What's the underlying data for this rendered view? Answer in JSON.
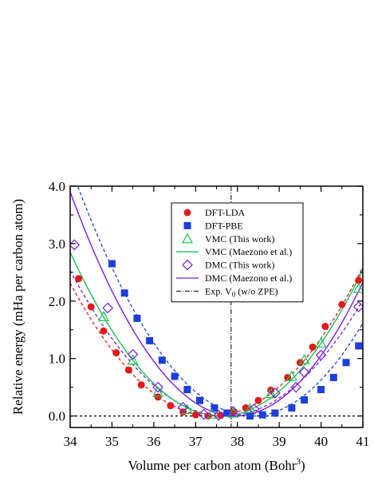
{
  "chart_data": {
    "type": "scatter",
    "title": "",
    "xlabel": "Volume per carbon atom (Bohr",
    "xlabel_superscript": "3",
    "xlabel_suffix": ")",
    "ylabel": "Relative energy (mHa per carbon atom)",
    "xlim": [
      34,
      41
    ],
    "ylim": [
      -0.2,
      4.0
    ],
    "xticks": [
      "34",
      "35",
      "36",
      "37",
      "38",
      "39",
      "40",
      "41"
    ],
    "yticks": [
      "0.0",
      "1.0",
      "2.0",
      "3.0",
      "4.0"
    ],
    "grid": false,
    "legend_position": "top-center",
    "zero_line": 0.0,
    "exp_v0": 37.85,
    "series": [
      {
        "name": "DFT-LDA",
        "kind": "points",
        "marker": "circle",
        "color": "#e3191c",
        "x": [
          34.2,
          34.5,
          34.8,
          35.1,
          35.4,
          35.7,
          36.1,
          36.4,
          36.7,
          37.0,
          37.3,
          37.6,
          37.9,
          38.2,
          38.5,
          38.8,
          39.2,
          39.5,
          39.8,
          40.1,
          40.5,
          40.9
        ],
        "y": [
          2.39,
          1.9,
          1.48,
          1.1,
          0.8,
          0.54,
          0.33,
          0.18,
          0.07,
          0.02,
          0.0,
          0.01,
          0.07,
          0.14,
          0.27,
          0.45,
          0.67,
          0.93,
          1.2,
          1.56,
          1.94,
          2.36
        ]
      },
      {
        "name": "DFT-PBE",
        "kind": "points",
        "marker": "square",
        "color": "#1c3fd9",
        "x": [
          35.0,
          35.3,
          35.6,
          35.9,
          36.2,
          36.5,
          36.8,
          37.1,
          37.45,
          37.75,
          38.3,
          38.6,
          38.9,
          39.3,
          39.6,
          40.0,
          40.3,
          40.6,
          40.9
        ],
        "y": [
          2.65,
          2.14,
          1.7,
          1.31,
          0.97,
          0.69,
          0.46,
          0.27,
          0.14,
          0.05,
          0.0,
          0.02,
          0.05,
          0.14,
          0.28,
          0.46,
          0.67,
          0.93,
          1.22
        ]
      },
      {
        "name": "VMC (This work)",
        "kind": "points",
        "marker": "triangle",
        "color": "#19c25a",
        "x": [
          34.8,
          35.5,
          36.1,
          36.8,
          37.4,
          37.9,
          38.3,
          38.8,
          39.3,
          39.6,
          40.0,
          40.9
        ],
        "y": [
          1.73,
          0.97,
          0.41,
          0.11,
          0.03,
          0.05,
          0.13,
          0.39,
          0.69,
          0.98,
          1.27,
          2.22
        ]
      },
      {
        "name": "VMC (Maezono et al.)",
        "kind": "fit",
        "style": "solid",
        "color": "#19c25a",
        "v0": 37.6,
        "k": 0.22,
        "e0": 0.0
      },
      {
        "name": "DMC (This work)",
        "kind": "points",
        "marker": "diamond",
        "color": "#7a1fd6",
        "x": [
          34.1,
          34.9,
          35.5,
          36.1,
          36.7,
          37.2,
          37.55,
          37.9,
          38.4,
          38.9,
          39.4,
          39.6,
          40.0,
          40.9
        ],
        "y": [
          2.98,
          1.88,
          1.07,
          0.5,
          0.15,
          0.03,
          0.01,
          0.08,
          0.12,
          0.4,
          0.5,
          0.76,
          1.06,
          1.9
        ]
      },
      {
        "name": "DMC (Maezono et al.)",
        "kind": "fit",
        "style": "solid",
        "color": "#7a1fd6",
        "v0": 37.95,
        "k": 0.25,
        "e0": 0.0
      },
      {
        "name": "Exp. V",
        "name_subscript": "0",
        "name_suffix": " (w/o ZPE)",
        "kind": "vline",
        "style": "dashdot",
        "color": "#000000"
      }
    ],
    "dashed_fits": [
      {
        "of": "DFT-LDA",
        "color": "#e3191c",
        "v0": 37.4,
        "k": 0.2,
        "e0": 0.0
      },
      {
        "of": "DFT-PBE",
        "color": "#1c3fd9",
        "v0": 38.35,
        "k": 0.23,
        "e0": 0.0
      },
      {
        "of": "DMC (This work)",
        "color": "#7a1fd6",
        "v0": 37.7,
        "k": 0.185,
        "e0": 0.0
      }
    ]
  }
}
